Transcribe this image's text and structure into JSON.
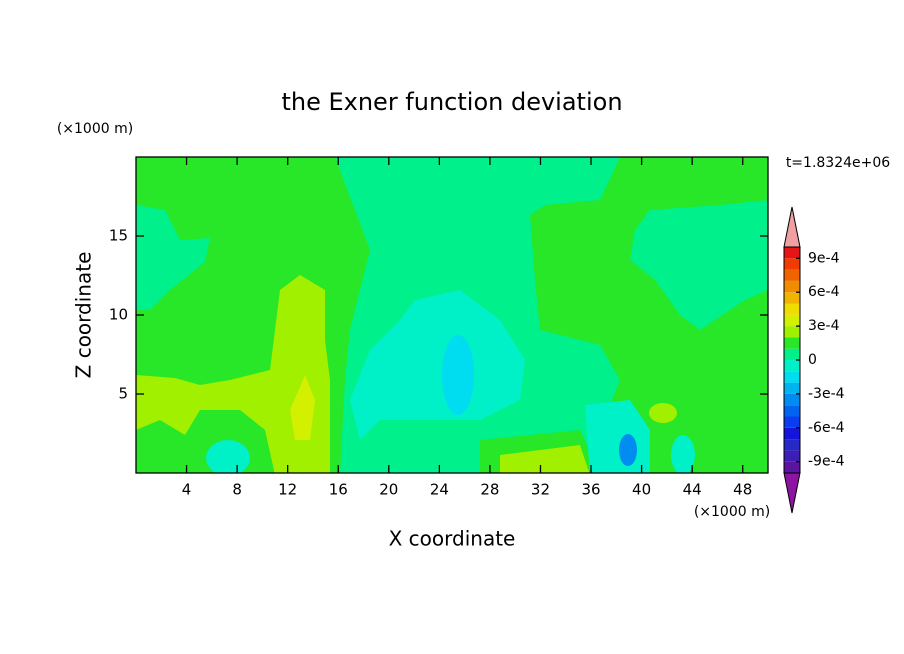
{
  "chart_data": {
    "type": "contour",
    "title": "the Exner function deviation",
    "x_label": "X coordinate",
    "y_label": "Z coordinate",
    "x_unit": "(×1000 m)",
    "y_unit": "(×1000 m)",
    "time_label": "t=1.8324e+06",
    "xlim": [
      0,
      50
    ],
    "ylim": [
      0,
      20
    ],
    "xticks": [
      4,
      8,
      12,
      16,
      20,
      24,
      28,
      32,
      36,
      40,
      44,
      48
    ],
    "yticks": [
      5,
      10,
      15
    ],
    "colorbar": {
      "levels": [
        -0.001,
        -0.0009,
        -0.0008,
        -0.0007,
        -0.0006,
        -0.0005,
        -0.0004,
        -0.0003,
        -0.0002,
        -0.0001,
        0,
        0.0001,
        0.0002,
        0.0003,
        0.0004,
        0.0005,
        0.0006,
        0.0007,
        0.0008,
        0.0009,
        0.001
      ],
      "colors": [
        "#5a14a0",
        "#3c1eb4",
        "#2828c8",
        "#1414dc",
        "#0a3cf0",
        "#0064f0",
        "#008cf0",
        "#00b4f0",
        "#00dcf0",
        "#00f0c8",
        "#00f08c",
        "#28e628",
        "#a0f000",
        "#d2f000",
        "#f0dc00",
        "#f0b400",
        "#f08c00",
        "#f06400",
        "#f03c00",
        "#e61414"
      ],
      "under_color": "#8c14a0",
      "over_color": "#f0a0a0",
      "ticks": [
        {
          "value": -0.0009,
          "label": "-9e-4"
        },
        {
          "value": -0.0006,
          "label": "-6e-4"
        },
        {
          "value": -0.0003,
          "label": "-3e-4"
        },
        0,
        {
          "value": 0.0003,
          "label": "3e-4"
        },
        {
          "value": 0.0006,
          "label": "6e-4"
        },
        {
          "value": 0.0009,
          "label": "9e-4"
        }
      ]
    }
  }
}
